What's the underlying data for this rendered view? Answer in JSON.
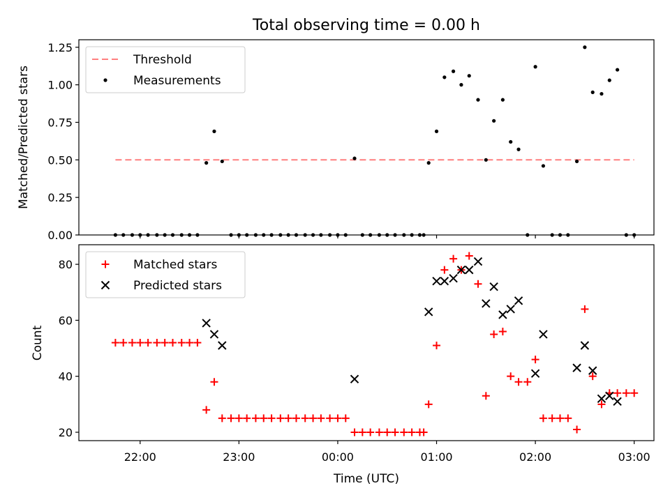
{
  "chart_data": [
    {
      "type": "scatter",
      "title": "Total observing time = 0.00 h",
      "xlabel": "",
      "ylabel": "Matched/Predicted stars",
      "x_unit": "hours (UTC, relative to 00:00)",
      "xlim": [
        -2.62,
        3.2
      ],
      "ylim": [
        0,
        1.3
      ],
      "yticks": [
        "0.00",
        "0.25",
        "0.50",
        "0.75",
        "1.00",
        "1.25"
      ],
      "legend_position": "top-left",
      "series": [
        {
          "name": "Threshold",
          "kind": "dashed-line",
          "color": "#ff7f7f",
          "points": [
            [
              -2.25,
              0.5
            ],
            [
              3.0,
              0.5
            ]
          ]
        },
        {
          "name": "Measurements",
          "kind": "dot",
          "color": "#000000",
          "points": [
            [
              -2.25,
              0
            ],
            [
              -2.17,
              0
            ],
            [
              -2.08,
              0
            ],
            [
              -2.0,
              0
            ],
            [
              -1.92,
              0
            ],
            [
              -1.83,
              0
            ],
            [
              -1.75,
              0
            ],
            [
              -1.67,
              0
            ],
            [
              -1.58,
              0
            ],
            [
              -1.5,
              0
            ],
            [
              -1.42,
              0
            ],
            [
              -1.33,
              0.48
            ],
            [
              -1.25,
              0.69
            ],
            [
              -1.17,
              0.49
            ],
            [
              -1.08,
              0
            ],
            [
              -1.0,
              0
            ],
            [
              -0.92,
              0
            ],
            [
              -0.83,
              0
            ],
            [
              -0.75,
              0
            ],
            [
              -0.67,
              0
            ],
            [
              -0.58,
              0
            ],
            [
              -0.5,
              0
            ],
            [
              -0.42,
              0
            ],
            [
              -0.33,
              0
            ],
            [
              -0.25,
              0
            ],
            [
              -0.17,
              0
            ],
            [
              -0.08,
              0
            ],
            [
              0.0,
              0
            ],
            [
              0.08,
              0
            ],
            [
              0.17,
              0.51
            ],
            [
              0.25,
              0
            ],
            [
              0.33,
              0
            ],
            [
              0.42,
              0
            ],
            [
              0.5,
              0
            ],
            [
              0.58,
              0
            ],
            [
              0.67,
              0
            ],
            [
              0.75,
              0
            ],
            [
              0.83,
              0
            ],
            [
              0.87,
              0
            ],
            [
              0.92,
              0.48
            ],
            [
              1.0,
              0.69
            ],
            [
              1.08,
              1.05
            ],
            [
              1.17,
              1.09
            ],
            [
              1.25,
              1.0
            ],
            [
              1.33,
              1.06
            ],
            [
              1.42,
              0.9
            ],
            [
              1.5,
              0.5
            ],
            [
              1.58,
              0.76
            ],
            [
              1.67,
              0.9
            ],
            [
              1.75,
              0.62
            ],
            [
              1.83,
              0.57
            ],
            [
              1.92,
              0
            ],
            [
              2.0,
              1.12
            ],
            [
              2.08,
              0.46
            ],
            [
              2.17,
              0
            ],
            [
              2.25,
              0
            ],
            [
              2.33,
              0
            ],
            [
              2.42,
              0.49
            ],
            [
              2.5,
              1.25
            ],
            [
              2.58,
              0.95
            ],
            [
              2.67,
              0.94
            ],
            [
              2.75,
              1.03
            ],
            [
              2.83,
              1.1
            ],
            [
              2.92,
              0
            ],
            [
              3.0,
              0
            ]
          ]
        }
      ]
    },
    {
      "type": "scatter",
      "title": "",
      "xlabel": "Time (UTC)",
      "ylabel": "Count",
      "x_unit": "hours (UTC, relative to 00:00)",
      "xlim": [
        -2.62,
        3.2
      ],
      "ylim": [
        17,
        87
      ],
      "yticks": [
        "20",
        "40",
        "60",
        "80"
      ],
      "xticks": [
        {
          "x": -2,
          "label": "22:00"
        },
        {
          "x": -1,
          "label": "23:00"
        },
        {
          "x": 0,
          "label": "00:00"
        },
        {
          "x": 1,
          "label": "01:00"
        },
        {
          "x": 2,
          "label": "02:00"
        },
        {
          "x": 3,
          "label": "03:00"
        }
      ],
      "legend_position": "top-left",
      "series": [
        {
          "name": "Matched stars",
          "kind": "plus",
          "color": "#ff0000",
          "points": [
            [
              -2.25,
              52
            ],
            [
              -2.17,
              52
            ],
            [
              -2.08,
              52
            ],
            [
              -2.0,
              52
            ],
            [
              -1.92,
              52
            ],
            [
              -1.83,
              52
            ],
            [
              -1.75,
              52
            ],
            [
              -1.67,
              52
            ],
            [
              -1.58,
              52
            ],
            [
              -1.5,
              52
            ],
            [
              -1.42,
              52
            ],
            [
              -1.33,
              28
            ],
            [
              -1.25,
              38
            ],
            [
              -1.17,
              25
            ],
            [
              -1.08,
              25
            ],
            [
              -1.0,
              25
            ],
            [
              -0.92,
              25
            ],
            [
              -0.83,
              25
            ],
            [
              -0.75,
              25
            ],
            [
              -0.67,
              25
            ],
            [
              -0.58,
              25
            ],
            [
              -0.5,
              25
            ],
            [
              -0.42,
              25
            ],
            [
              -0.33,
              25
            ],
            [
              -0.25,
              25
            ],
            [
              -0.17,
              25
            ],
            [
              -0.08,
              25
            ],
            [
              0.0,
              25
            ],
            [
              0.08,
              25
            ],
            [
              0.17,
              20
            ],
            [
              0.25,
              20
            ],
            [
              0.33,
              20
            ],
            [
              0.42,
              20
            ],
            [
              0.5,
              20
            ],
            [
              0.58,
              20
            ],
            [
              0.67,
              20
            ],
            [
              0.75,
              20
            ],
            [
              0.83,
              20
            ],
            [
              0.87,
              20
            ],
            [
              0.92,
              30
            ],
            [
              1.0,
              51
            ],
            [
              1.08,
              78
            ],
            [
              1.17,
              82
            ],
            [
              1.25,
              78
            ],
            [
              1.33,
              83
            ],
            [
              1.42,
              73
            ],
            [
              1.5,
              33
            ],
            [
              1.58,
              55
            ],
            [
              1.67,
              56
            ],
            [
              1.75,
              40
            ],
            [
              1.83,
              38
            ],
            [
              1.92,
              38
            ],
            [
              2.0,
              46
            ],
            [
              2.08,
              25
            ],
            [
              2.17,
              25
            ],
            [
              2.25,
              25
            ],
            [
              2.33,
              25
            ],
            [
              2.42,
              21
            ],
            [
              2.5,
              64
            ],
            [
              2.58,
              40
            ],
            [
              2.67,
              30
            ],
            [
              2.75,
              34
            ],
            [
              2.83,
              34
            ],
            [
              2.92,
              34
            ],
            [
              3.0,
              34
            ]
          ]
        },
        {
          "name": "Predicted stars",
          "kind": "x",
          "color": "#000000",
          "points": [
            [
              -1.33,
              59
            ],
            [
              -1.25,
              55
            ],
            [
              -1.17,
              51
            ],
            [
              0.17,
              39
            ],
            [
              0.92,
              63
            ],
            [
              1.0,
              74
            ],
            [
              1.08,
              74
            ],
            [
              1.17,
              75
            ],
            [
              1.25,
              78
            ],
            [
              1.33,
              78
            ],
            [
              1.42,
              81
            ],
            [
              1.5,
              66
            ],
            [
              1.58,
              72
            ],
            [
              1.67,
              62
            ],
            [
              1.75,
              64
            ],
            [
              1.83,
              67
            ],
            [
              2.0,
              41
            ],
            [
              2.08,
              55
            ],
            [
              2.42,
              43
            ],
            [
              2.5,
              51
            ],
            [
              2.58,
              42
            ],
            [
              2.67,
              32
            ],
            [
              2.75,
              33
            ],
            [
              2.83,
              31
            ]
          ]
        }
      ]
    }
  ]
}
